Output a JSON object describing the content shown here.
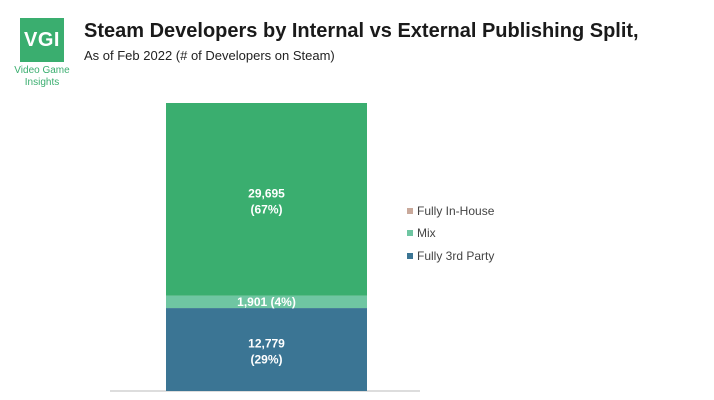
{
  "logo": {
    "abbr": "VGI",
    "text_line1": "Video Game",
    "text_line2": "Insights"
  },
  "title": "Steam Developers by Internal vs External Publishing Split,",
  "subtitle": "As of Feb 2022 (# of Developers on Steam)",
  "colors": {
    "fully_3rd_party": "#3b7594",
    "mix": "#6fc6a2",
    "fully_in_house": "#3aae6f",
    "in_house_legend": "#c9a99b"
  },
  "chart_data": {
    "type": "bar",
    "stacked": true,
    "title": "Steam Developers by Internal vs External Publishing Split,",
    "subtitle": "As of Feb 2022 (# of Developers on Steam)",
    "categories": [
      ""
    ],
    "series": [
      {
        "name": "Fully 3rd Party",
        "values": [
          12779
        ],
        "label": "12,779",
        "pct_label": "(29%)"
      },
      {
        "name": "Mix",
        "values": [
          1901
        ],
        "label": "1,901 (4%)"
      },
      {
        "name": "Fully In-House",
        "values": [
          29695
        ],
        "label": "29,695",
        "pct_label": "(67%)"
      }
    ],
    "legend": [
      "Fully In-House",
      "Mix",
      "Fully 3rd Party"
    ],
    "legend_position": "right"
  }
}
